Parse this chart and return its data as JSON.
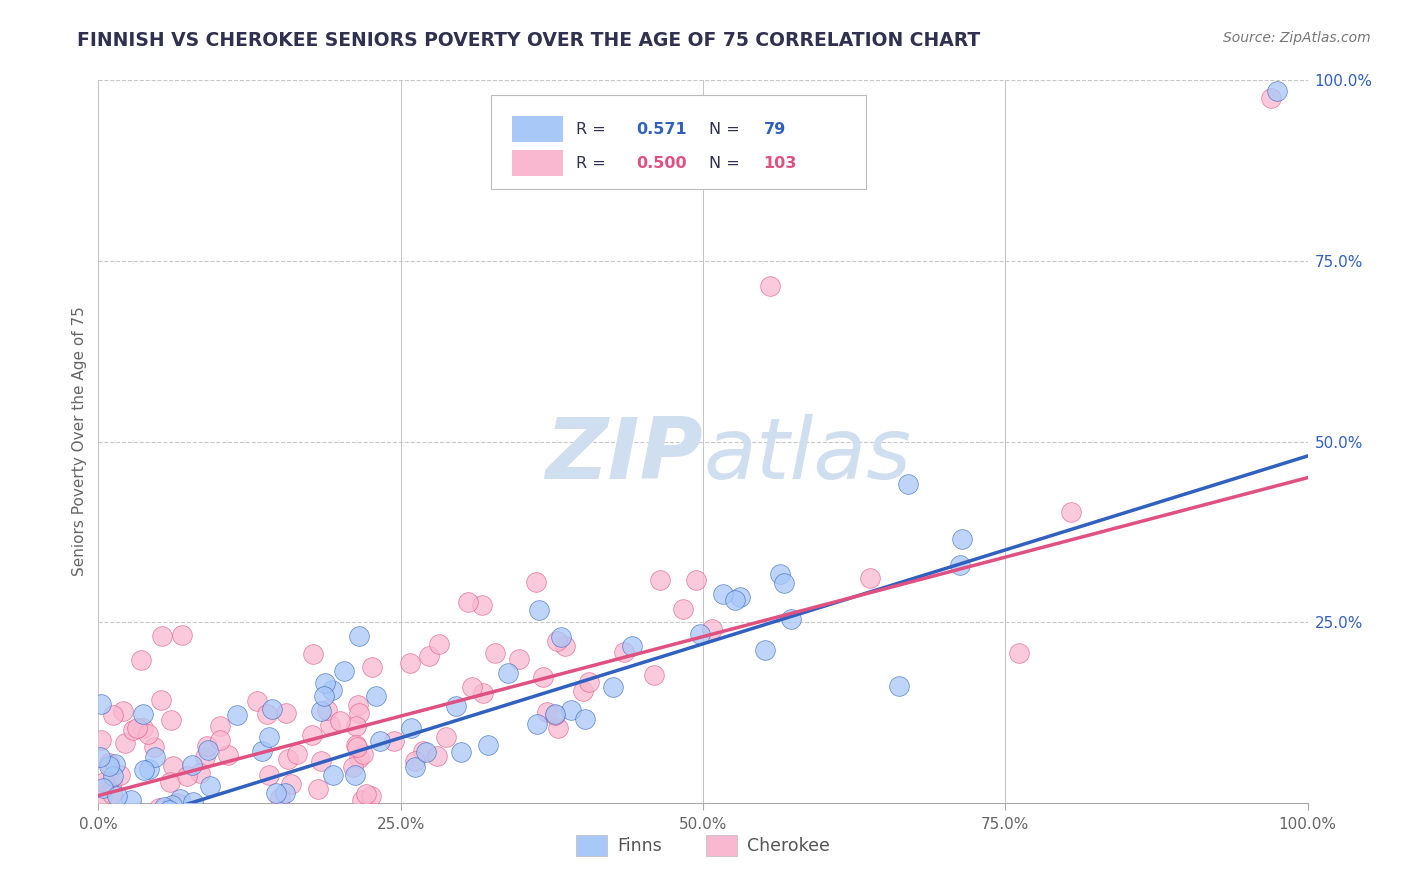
{
  "title": "FINNISH VS CHEROKEE SENIORS POVERTY OVER THE AGE OF 75 CORRELATION CHART",
  "source": "Source: ZipAtlas.com",
  "ylabel": "Seniors Poverty Over the Age of 75",
  "xlim": [
    0,
    1.0
  ],
  "ylim": [
    0,
    1.0
  ],
  "x_tick_labels": [
    "0.0%",
    "25.0%",
    "50.0%",
    "75.0%",
    "100.0%"
  ],
  "x_tick_positions": [
    0.0,
    0.25,
    0.5,
    0.75,
    1.0
  ],
  "y_tick_labels": [
    "100.0%",
    "75.0%",
    "50.0%",
    "25.0%"
  ],
  "y_tick_positions": [
    1.0,
    0.75,
    0.5,
    0.25
  ],
  "finns_R": 0.571,
  "finns_N": 79,
  "cherokee_R": 0.5,
  "cherokee_N": 103,
  "finns_color": "#A8C8F8",
  "cherokee_color": "#F9B8D0",
  "finns_line_color": "#3060C0",
  "cherokee_line_color": "#E05080",
  "title_color": "#303050",
  "watermark_color": "#D0DFF0",
  "background_color": "#FFFFFF",
  "grid_color": "#C8C8C8",
  "seed": 42,
  "finns_slope": 0.52,
  "finns_intercept": -0.04,
  "cherokee_slope": 0.44,
  "cherokee_intercept": 0.01
}
